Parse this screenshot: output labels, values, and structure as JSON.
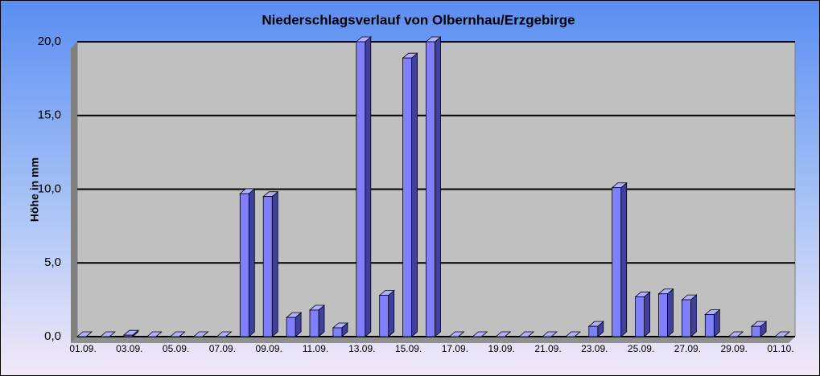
{
  "chart_data": {
    "type": "bar3d",
    "title": "Niederschlagsverlauf von Olbernhau/Erzgebirge",
    "y_label": "Höhe in  mm",
    "categories": [
      "01.09.",
      null,
      "03.09.",
      null,
      "05.09.",
      null,
      "07.09.",
      null,
      "09.09.",
      null,
      "11.09.",
      null,
      "13.09.",
      null,
      "15.09.",
      null,
      "17.09.",
      null,
      "19.09.",
      null,
      "21.09.",
      null,
      "23.09.",
      null,
      "25.09.",
      null,
      "27.09.",
      null,
      "29.09.",
      null,
      "01.10."
    ],
    "values": [
      0,
      0,
      0.1,
      0,
      0,
      0,
      0,
      9.7,
      9.5,
      1.3,
      1.8,
      0.6,
      20.0,
      2.8,
      18.9,
      20.0,
      0,
      0,
      0,
      0,
      0,
      0,
      0.7,
      10.1,
      2.7,
      2.9,
      2.5,
      1.5,
      0,
      0.7,
      0
    ],
    "color": "#8080ff",
    "ylim": [
      0,
      20
    ],
    "yticks": [
      {
        "value": 0,
        "label": "0,0"
      },
      {
        "value": 5,
        "label": "5,0"
      },
      {
        "value": 10,
        "label": "10,0"
      },
      {
        "value": 15,
        "label": "15,0"
      },
      {
        "value": 20,
        "label": "20,0"
      }
    ],
    "grid": true
  }
}
